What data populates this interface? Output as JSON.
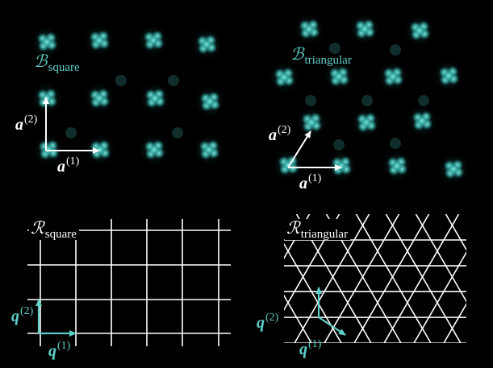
{
  "colors": {
    "background": "#000000",
    "atom_cyan": "#4fd6cc",
    "atom_glow": "#2a8f8f",
    "label_cyan": "#5ecfc8",
    "lattice_white": "#ffffff",
    "arrow_white": "#ffffff",
    "arrow_cyan": "#5ecfc8",
    "vector_label_white": "#ffffff"
  },
  "panels": {
    "real_square": {
      "label_main": "ℬ",
      "label_sub": "square",
      "vector_1_main": "a",
      "vector_1_sup": "(1)",
      "vector_2_main": "a",
      "vector_2_sup": "(2)"
    },
    "real_triangular": {
      "label_main": "ℬ",
      "label_sub": "triangular",
      "vector_1_main": "a",
      "vector_1_sup": "(1)",
      "vector_2_main": "a",
      "vector_2_sup": "(2)"
    },
    "reciprocal_square": {
      "label_main": "ℛ",
      "label_sub": "square",
      "vector_1_main": "q",
      "vector_1_sup": "(1)",
      "vector_2_main": "q",
      "vector_2_sup": "(2)"
    },
    "reciprocal_triangular": {
      "label_main": "ℛ",
      "label_sub": "triangular",
      "vector_1_main": "q",
      "vector_1_sup": "(1)",
      "vector_2_main": "q",
      "vector_2_sup": "(2)"
    }
  }
}
